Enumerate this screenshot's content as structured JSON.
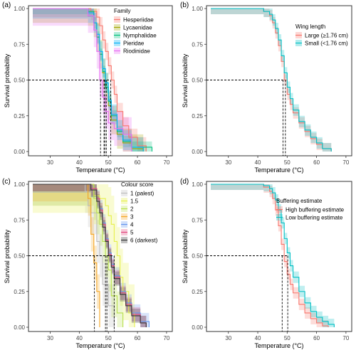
{
  "chart_data": [
    {
      "panel_label": "(a)",
      "type": "line",
      "subtype": "kaplan-meier survival step curves with confidence bands",
      "xlabel": "Temperature (°C)",
      "ylabel": "Survival probability",
      "xlim": [
        24,
        71
      ],
      "ylim": [
        0,
        1
      ],
      "xticks": [
        30,
        40,
        50,
        60,
        70
      ],
      "yticks": [
        0.0,
        0.25,
        0.5,
        0.75,
        1.0
      ],
      "ytick_labels": [
        "0.00",
        "0.25",
        "0.50",
        "0.75",
        "1.00"
      ],
      "grid": false,
      "legend_title": "Family",
      "legend_position": "top-right",
      "reference_line": {
        "y": 0.5,
        "x_medians": [
          47.3,
          48.5,
          48.8,
          49.3,
          50.8
        ]
      },
      "series": [
        {
          "name": "Hesperiidae",
          "color": "#F8766D",
          "x": [
            36,
            44,
            46,
            47,
            48,
            49,
            50,
            51,
            52,
            53,
            55,
            57,
            60,
            63
          ],
          "y": [
            1.0,
            0.98,
            0.94,
            0.88,
            0.78,
            0.7,
            0.6,
            0.5,
            0.4,
            0.28,
            0.18,
            0.1,
            0.04,
            0.0
          ],
          "band_width": 0.06
        },
        {
          "name": "Lycaenidae",
          "color": "#A3A500",
          "x": [
            36,
            43,
            45,
            46,
            47,
            48,
            49,
            50,
            51,
            53,
            55,
            58,
            62
          ],
          "y": [
            1.0,
            0.98,
            0.9,
            0.8,
            0.68,
            0.55,
            0.45,
            0.32,
            0.22,
            0.12,
            0.06,
            0.02,
            0.0
          ],
          "band_width": 0.1
        },
        {
          "name": "Nymphalidae",
          "color": "#00BF7D",
          "x": [
            36,
            43,
            45,
            46,
            47,
            48,
            49,
            50,
            51,
            53,
            55,
            58,
            65
          ],
          "y": [
            1.0,
            0.98,
            0.9,
            0.8,
            0.68,
            0.56,
            0.45,
            0.35,
            0.25,
            0.14,
            0.07,
            0.03,
            0.0
          ],
          "band_width": 0.04
        },
        {
          "name": "Pieridae",
          "color": "#00B0F6",
          "x": [
            36,
            43,
            45,
            46,
            47,
            48,
            49,
            50,
            51,
            53,
            55,
            58,
            62
          ],
          "y": [
            1.0,
            0.97,
            0.9,
            0.82,
            0.7,
            0.58,
            0.48,
            0.36,
            0.26,
            0.15,
            0.08,
            0.03,
            0.0
          ],
          "band_width": 0.07
        },
        {
          "name": "Riodinidae",
          "color": "#E76BF3",
          "x": [
            36,
            43,
            45,
            46,
            47,
            48,
            49,
            50,
            52,
            55,
            58
          ],
          "y": [
            1.0,
            0.95,
            0.85,
            0.7,
            0.5,
            0.38,
            0.28,
            0.2,
            0.16,
            0.12,
            0.0
          ],
          "band_width": 0.12
        }
      ]
    },
    {
      "panel_label": "(b)",
      "type": "line",
      "subtype": "kaplan-meier survival step curves with confidence bands",
      "xlabel": "Temperature (°C)",
      "ylabel": "Survival probability",
      "xlim": [
        24,
        71
      ],
      "ylim": [
        0,
        1
      ],
      "xticks": [
        30,
        40,
        50,
        60,
        70
      ],
      "yticks": [
        0.0,
        0.25,
        0.5,
        0.75,
        1.0
      ],
      "ytick_labels": [
        "0.00",
        "0.25",
        "0.50",
        "0.75",
        "1.00"
      ],
      "grid": false,
      "legend_title": "Wing length",
      "legend_position": "right",
      "reference_line": {
        "y": 0.5,
        "x_medians": [
          48.6,
          49.4
        ]
      },
      "series": [
        {
          "name": "Large (≥1.76 cm)",
          "color": "#F8766D",
          "x": [
            37,
            42,
            44,
            45,
            46,
            47,
            48,
            49,
            50,
            51,
            52,
            54,
            56,
            58,
            60,
            62,
            65
          ],
          "y": [
            1.0,
            0.98,
            0.95,
            0.9,
            0.83,
            0.74,
            0.63,
            0.5,
            0.4,
            0.33,
            0.27,
            0.2,
            0.14,
            0.09,
            0.05,
            0.02,
            0.0
          ],
          "band_width": 0.04
        },
        {
          "name": "Small (<1.76 cm)",
          "color": "#00BFC4",
          "x": [
            37,
            42,
            44,
            45,
            46,
            47,
            48,
            49,
            50,
            51,
            52,
            54,
            56,
            58,
            60,
            62,
            65
          ],
          "y": [
            1.0,
            0.98,
            0.96,
            0.92,
            0.86,
            0.78,
            0.67,
            0.55,
            0.45,
            0.37,
            0.29,
            0.21,
            0.15,
            0.1,
            0.06,
            0.02,
            0.0
          ],
          "band_width": 0.04
        }
      ]
    },
    {
      "panel_label": "(c)",
      "type": "line",
      "subtype": "kaplan-meier survival step curves with confidence bands",
      "xlabel": "Temperature (°C)",
      "ylabel": "Survival probability",
      "xlim": [
        24,
        71
      ],
      "ylim": [
        0,
        1
      ],
      "xticks": [
        30,
        40,
        50,
        60,
        70
      ],
      "yticks": [
        0.0,
        0.25,
        0.5,
        0.75,
        1.0
      ],
      "ytick_labels": [
        "0.00",
        "0.25",
        "0.50",
        "0.75",
        "1.00"
      ],
      "grid": false,
      "legend_title": "Colour score",
      "legend_position": "top-right",
      "reference_line": {
        "y": 0.5,
        "x_medians": [
          45.2,
          49.0,
          49.5,
          52.0
        ]
      },
      "series": [
        {
          "name": "1 (palest)",
          "color": "#BDBDBD",
          "x": [
            38,
            42,
            43,
            44,
            46,
            47,
            48,
            50,
            52
          ],
          "y": [
            1.0,
            0.95,
            0.85,
            0.8,
            0.6,
            0.5,
            0.3,
            0.15,
            0.0
          ],
          "band_width": 0.15
        },
        {
          "name": "1.5",
          "color": "#E6F04A",
          "x": [
            40,
            45,
            47,
            49,
            50,
            51,
            52,
            53,
            54,
            55,
            57,
            59
          ],
          "y": [
            1.0,
            0.92,
            0.9,
            0.85,
            0.78,
            0.72,
            0.6,
            0.5,
            0.35,
            0.25,
            0.1,
            0.0
          ],
          "band_width": 0.2
        },
        {
          "name": "2",
          "color": "#B8E04A",
          "x": [
            40,
            45,
            46,
            47,
            48,
            49,
            50,
            51,
            53,
            55
          ],
          "y": [
            1.0,
            0.9,
            0.8,
            0.72,
            0.6,
            0.5,
            0.4,
            0.22,
            0.1,
            0.0
          ],
          "band_width": 0.15
        },
        {
          "name": "3",
          "color": "#F5A623",
          "x": [
            40,
            43,
            44,
            45,
            46,
            47
          ],
          "y": [
            1.0,
            0.9,
            0.65,
            0.45,
            0.25,
            0.0
          ],
          "band_width": 0.12
        },
        {
          "name": "4",
          "color": "#6495ED",
          "x": [
            40,
            44,
            46,
            47,
            48,
            49,
            50,
            51,
            52,
            54,
            56,
            58,
            61,
            64
          ],
          "y": [
            1.0,
            0.97,
            0.9,
            0.83,
            0.73,
            0.62,
            0.52,
            0.44,
            0.36,
            0.25,
            0.17,
            0.1,
            0.04,
            0.0
          ],
          "band_width": 0.06
        },
        {
          "name": "5",
          "color": "#E0457B",
          "x": [
            40,
            44,
            46,
            47,
            48,
            49,
            50,
            51,
            52,
            54,
            56,
            58,
            61,
            63
          ],
          "y": [
            1.0,
            0.97,
            0.9,
            0.82,
            0.72,
            0.61,
            0.51,
            0.43,
            0.35,
            0.24,
            0.16,
            0.09,
            0.03,
            0.0
          ],
          "band_width": 0.05
        },
        {
          "name": "6 (darkest)",
          "color": "#333333",
          "x": [
            40,
            44,
            46,
            47,
            48,
            49,
            50,
            51,
            52,
            54,
            56,
            58,
            61,
            63
          ],
          "y": [
            1.0,
            0.96,
            0.88,
            0.8,
            0.7,
            0.6,
            0.5,
            0.42,
            0.34,
            0.23,
            0.15,
            0.08,
            0.03,
            0.0
          ],
          "band_width": 0.05
        }
      ]
    },
    {
      "panel_label": "(d)",
      "type": "line",
      "subtype": "kaplan-meier survival step curves with confidence bands",
      "xlabel": "Temperature (°C)",
      "ylabel": "Survival probability",
      "xlim": [
        24,
        71
      ],
      "ylim": [
        0,
        1
      ],
      "xticks": [
        30,
        40,
        50,
        60,
        70
      ],
      "yticks": [
        0.0,
        0.25,
        0.5,
        0.75,
        1.0
      ],
      "ytick_labels": [
        "0.00",
        "0.25",
        "0.50",
        "0.75",
        "1.00"
      ],
      "grid": false,
      "legend_title": "Buffering estimate",
      "legend_position": "right",
      "reference_line": {
        "y": 0.5,
        "x_medians": [
          48.3,
          50.2
        ]
      },
      "series": [
        {
          "name": "High buffering estimate",
          "color": "#F8766D",
          "x": [
            37,
            42,
            44,
            45,
            46,
            47,
            48,
            49,
            50,
            51,
            52,
            54,
            56,
            58,
            60,
            62,
            64
          ],
          "y": [
            1.0,
            0.98,
            0.95,
            0.9,
            0.82,
            0.71,
            0.58,
            0.46,
            0.37,
            0.3,
            0.24,
            0.16,
            0.1,
            0.06,
            0.03,
            0.01,
            0.0
          ],
          "band_width": 0.04
        },
        {
          "name": "Low buffering estimate",
          "color": "#00BFC4",
          "x": [
            37,
            42,
            44,
            45,
            46,
            47,
            48,
            49,
            50,
            51,
            52,
            54,
            56,
            58,
            60,
            62,
            64,
            66
          ],
          "y": [
            1.0,
            0.99,
            0.97,
            0.94,
            0.89,
            0.82,
            0.73,
            0.62,
            0.52,
            0.43,
            0.35,
            0.25,
            0.17,
            0.11,
            0.07,
            0.04,
            0.02,
            0.0
          ],
          "band_width": 0.04
        }
      ]
    }
  ]
}
